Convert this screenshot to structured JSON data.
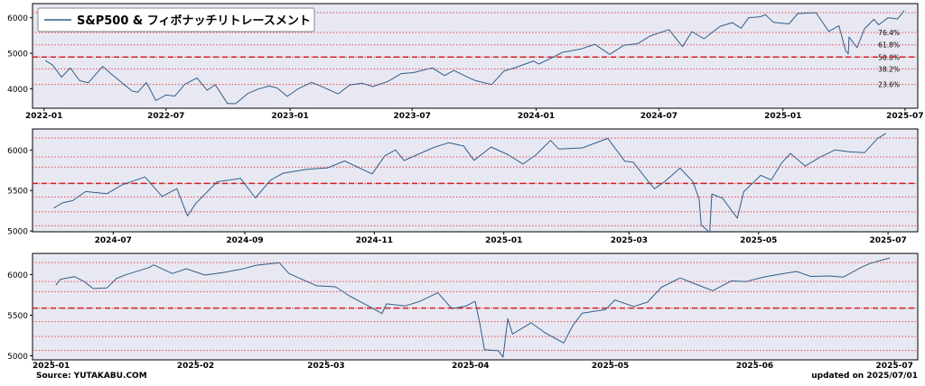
{
  "footer": {
    "source": "Source: YUTAKABU.COM",
    "updated": "updated on 2025/07/01"
  },
  "colors": {
    "line": "#2f5f8a",
    "fib_line": "#e8434f",
    "fib_mid": "#d42020",
    "panel_bg": "#e8e8f2"
  },
  "chart_data": [
    {
      "type": "line",
      "title": "",
      "legend": {
        "label": "S&P500 & フィボナッチリトレースメント",
        "position": "top-left"
      },
      "ylim": [
        3450,
        6400
      ],
      "yticks": [
        4000,
        5000,
        6000
      ],
      "xlim": [
        "2021-12-15",
        "2025-07-20"
      ],
      "xticks": [
        "2022-01",
        "2022-07",
        "2023-01",
        "2023-07",
        "2024-01",
        "2024-07",
        "2025-01",
        "2025-07"
      ],
      "grid": false,
      "fib_levels": [
        {
          "value": 6147,
          "label": ""
        },
        {
          "value": 5587,
          "label": "76.4%"
        },
        {
          "value": 5237,
          "label": "61.8%"
        },
        {
          "value": 4892,
          "label": "50.0%"
        },
        {
          "value": 4560,
          "label": "38.2%"
        },
        {
          "value": 4120,
          "label": "23.6%"
        }
      ],
      "fib_mid_value": 4892,
      "series": [
        {
          "points": [
            [
              "2022-01-03",
              4796
            ],
            [
              "2022-01-14",
              4662
            ],
            [
              "2022-01-27",
              4326
            ],
            [
              "2022-02-09",
              4587
            ],
            [
              "2022-02-23",
              4225
            ],
            [
              "2022-03-08",
              4170
            ],
            [
              "2022-03-29",
              4631
            ],
            [
              "2022-04-12",
              4397
            ],
            [
              "2022-04-29",
              4132
            ],
            [
              "2022-05-12",
              3930
            ],
            [
              "2022-05-20",
              3901
            ],
            [
              "2022-06-02",
              4176
            ],
            [
              "2022-06-16",
              3667
            ],
            [
              "2022-07-01",
              3825
            ],
            [
              "2022-07-14",
              3790
            ],
            [
              "2022-07-29",
              4130
            ],
            [
              "2022-08-16",
              4305
            ],
            [
              "2022-08-31",
              3955
            ],
            [
              "2022-09-12",
              4110
            ],
            [
              "2022-09-30",
              3585
            ],
            [
              "2022-10-12",
              3577
            ],
            [
              "2022-10-31",
              3872
            ],
            [
              "2022-11-15",
              3992
            ],
            [
              "2022-12-01",
              4076
            ],
            [
              "2022-12-13",
              4019
            ],
            [
              "2022-12-28",
              3783
            ],
            [
              "2023-01-13",
              3999
            ],
            [
              "2023-02-02",
              4179
            ],
            [
              "2023-02-23",
              4012
            ],
            [
              "2023-03-13",
              3855
            ],
            [
              "2023-03-31",
              4109
            ],
            [
              "2023-04-18",
              4154
            ],
            [
              "2023-05-04",
              4061
            ],
            [
              "2023-05-26",
              4205
            ],
            [
              "2023-06-15",
              4426
            ],
            [
              "2023-07-03",
              4455
            ],
            [
              "2023-07-31",
              4589
            ],
            [
              "2023-08-18",
              4370
            ],
            [
              "2023-09-01",
              4515
            ],
            [
              "2023-09-21",
              4330
            ],
            [
              "2023-10-03",
              4229
            ],
            [
              "2023-10-27",
              4117
            ],
            [
              "2023-11-14",
              4496
            ],
            [
              "2023-12-01",
              4594
            ],
            [
              "2023-12-28",
              4783
            ],
            [
              "2024-01-05",
              4697
            ],
            [
              "2024-01-24",
              4868
            ],
            [
              "2024-02-09",
              5026
            ],
            [
              "2024-03-08",
              5123
            ],
            [
              "2024-03-28",
              5254
            ],
            [
              "2024-04-19",
              4967
            ],
            [
              "2024-05-10",
              5222
            ],
            [
              "2024-05-31",
              5277
            ],
            [
              "2024-06-18",
              5487
            ],
            [
              "2024-07-16",
              5667
            ],
            [
              "2024-08-05",
              5186
            ],
            [
              "2024-08-19",
              5608
            ],
            [
              "2024-09-06",
              5408
            ],
            [
              "2024-09-30",
              5762
            ],
            [
              "2024-10-18",
              5864
            ],
            [
              "2024-10-31",
              5705
            ],
            [
              "2024-11-11",
              6001
            ],
            [
              "2024-11-29",
              6032
            ],
            [
              "2024-12-06",
              6090
            ],
            [
              "2024-12-18",
              5872
            ],
            [
              "2025-01-10",
              5827
            ],
            [
              "2025-01-23",
              6119
            ],
            [
              "2025-02-19",
              6144
            ],
            [
              "2025-03-10",
              5615
            ],
            [
              "2025-03-25",
              5776
            ],
            [
              "2025-04-04",
              5074
            ],
            [
              "2025-04-08",
              4982
            ],
            [
              "2025-04-09",
              5457
            ],
            [
              "2025-04-21",
              5158
            ],
            [
              "2025-05-02",
              5687
            ],
            [
              "2025-05-16",
              5958
            ],
            [
              "2025-05-23",
              5802
            ],
            [
              "2025-06-06",
              6000
            ],
            [
              "2025-06-20",
              5968
            ],
            [
              "2025-06-30",
              6205
            ]
          ]
        }
      ]
    },
    {
      "type": "line",
      "title": "",
      "ylim": [
        4990,
        6260
      ],
      "yticks": [
        5000,
        5500,
        6000
      ],
      "xlim": [
        "2024-05-24",
        "2025-07-15"
      ],
      "xticks": [
        "2024-07",
        "2024-09",
        "2024-11",
        "2025-01",
        "2025-03",
        "2025-05",
        "2025-07"
      ],
      "grid": false,
      "fib_levels": [
        {
          "value": 6147,
          "label": ""
        },
        {
          "value": 5915,
          "label": ""
        },
        {
          "value": 5790,
          "label": ""
        },
        {
          "value": 5587,
          "label": ""
        },
        {
          "value": 5420,
          "label": ""
        },
        {
          "value": 5237,
          "label": ""
        },
        {
          "value": 5065,
          "label": ""
        }
      ],
      "fib_mid_value": 5587,
      "series": [
        {
          "points": [
            [
              "2024-06-03",
              5283
            ],
            [
              "2024-06-07",
              5347
            ],
            [
              "2024-06-12",
              5375
            ],
            [
              "2024-06-18",
              5487
            ],
            [
              "2024-06-28",
              5460
            ],
            [
              "2024-07-05",
              5567
            ],
            [
              "2024-07-16",
              5667
            ],
            [
              "2024-07-24",
              5427
            ],
            [
              "2024-07-31",
              5522
            ],
            [
              "2024-08-05",
              5186
            ],
            [
              "2024-08-09",
              5344
            ],
            [
              "2024-08-19",
              5608
            ],
            [
              "2024-08-30",
              5648
            ],
            [
              "2024-09-06",
              5408
            ],
            [
              "2024-09-13",
              5626
            ],
            [
              "2024-09-19",
              5713
            ],
            [
              "2024-09-30",
              5762
            ],
            [
              "2024-10-10",
              5780
            ],
            [
              "2024-10-18",
              5864
            ],
            [
              "2024-10-31",
              5705
            ],
            [
              "2024-11-06",
              5929
            ],
            [
              "2024-11-11",
              6001
            ],
            [
              "2024-11-15",
              5870
            ],
            [
              "2024-11-29",
              6032
            ],
            [
              "2024-12-06",
              6090
            ],
            [
              "2024-12-13",
              6051
            ],
            [
              "2024-12-18",
              5872
            ],
            [
              "2024-12-26",
              6037
            ],
            [
              "2025-01-03",
              5942
            ],
            [
              "2025-01-10",
              5827
            ],
            [
              "2025-01-16",
              5937
            ],
            [
              "2025-01-23",
              6119
            ],
            [
              "2025-01-27",
              6012
            ],
            [
              "2025-02-07",
              6026
            ],
            [
              "2025-02-19",
              6144
            ],
            [
              "2025-02-27",
              5861
            ],
            [
              "2025-03-03",
              5849
            ],
            [
              "2025-03-10",
              5615
            ],
            [
              "2025-03-13",
              5521
            ],
            [
              "2025-03-18",
              5614
            ],
            [
              "2025-03-25",
              5776
            ],
            [
              "2025-03-31",
              5612
            ],
            [
              "2025-04-03",
              5397
            ],
            [
              "2025-04-04",
              5074
            ],
            [
              "2025-04-08",
              4982
            ],
            [
              "2025-04-09",
              5457
            ],
            [
              "2025-04-14",
              5406
            ],
            [
              "2025-04-21",
              5158
            ],
            [
              "2025-04-24",
              5485
            ],
            [
              "2025-05-02",
              5687
            ],
            [
              "2025-05-07",
              5631
            ],
            [
              "2025-05-12",
              5844
            ],
            [
              "2025-05-16",
              5958
            ],
            [
              "2025-05-23",
              5802
            ],
            [
              "2025-05-30",
              5912
            ],
            [
              "2025-06-06",
              6000
            ],
            [
              "2025-06-13",
              5977
            ],
            [
              "2025-06-20",
              5968
            ],
            [
              "2025-06-26",
              6141
            ],
            [
              "2025-06-30",
              6205
            ]
          ]
        }
      ]
    },
    {
      "type": "line",
      "title": "",
      "ylim": [
        4950,
        6260
      ],
      "yticks": [
        5000,
        5500,
        6000
      ],
      "xlim": [
        "2024-12-28",
        "2025-07-06"
      ],
      "xticks": [
        "2025-01",
        "2025-02",
        "2025-03",
        "2025-04",
        "2025-05",
        "2025-06",
        "2025-07"
      ],
      "grid": false,
      "fib_levels": [
        {
          "value": 6147,
          "label": ""
        },
        {
          "value": 5915,
          "label": ""
        },
        {
          "value": 5790,
          "label": ""
        },
        {
          "value": 5587,
          "label": ""
        },
        {
          "value": 5420,
          "label": ""
        },
        {
          "value": 5237,
          "label": ""
        },
        {
          "value": 5065,
          "label": ""
        }
      ],
      "fib_mid_value": 5587,
      "series": [
        {
          "points": [
            [
              "2025-01-02",
              5868
            ],
            [
              "2025-01-03",
              5942
            ],
            [
              "2025-01-06",
              5975
            ],
            [
              "2025-01-08",
              5918
            ],
            [
              "2025-01-10",
              5827
            ],
            [
              "2025-01-13",
              5836
            ],
            [
              "2025-01-15",
              5950
            ],
            [
              "2025-01-17",
              5997
            ],
            [
              "2025-01-22",
              6086
            ],
            [
              "2025-01-23",
              6119
            ],
            [
              "2025-01-27",
              6012
            ],
            [
              "2025-01-30",
              6071
            ],
            [
              "2025-02-03",
              5994
            ],
            [
              "2025-02-07",
              6026
            ],
            [
              "2025-02-11",
              6068
            ],
            [
              "2025-02-14",
              6115
            ],
            [
              "2025-02-19",
              6144
            ],
            [
              "2025-02-21",
              6013
            ],
            [
              "2025-02-27",
              5861
            ],
            [
              "2025-03-03",
              5849
            ],
            [
              "2025-03-06",
              5738
            ],
            [
              "2025-03-10",
              5615
            ],
            [
              "2025-03-13",
              5521
            ],
            [
              "2025-03-14",
              5639
            ],
            [
              "2025-03-18",
              5614
            ],
            [
              "2025-03-21",
              5667
            ],
            [
              "2025-03-25",
              5776
            ],
            [
              "2025-03-28",
              5581
            ],
            [
              "2025-03-31",
              5612
            ],
            [
              "2025-04-02",
              5671
            ],
            [
              "2025-04-03",
              5397
            ],
            [
              "2025-04-04",
              5074
            ],
            [
              "2025-04-07",
              5062
            ],
            [
              "2025-04-08",
              4982
            ],
            [
              "2025-04-09",
              5457
            ],
            [
              "2025-04-10",
              5268
            ],
            [
              "2025-04-14",
              5406
            ],
            [
              "2025-04-17",
              5283
            ],
            [
              "2025-04-21",
              5158
            ],
            [
              "2025-04-23",
              5376
            ],
            [
              "2025-04-25",
              5525
            ],
            [
              "2025-04-30",
              5569
            ],
            [
              "2025-05-02",
              5687
            ],
            [
              "2025-05-06",
              5607
            ],
            [
              "2025-05-09",
              5660
            ],
            [
              "2025-05-12",
              5844
            ],
            [
              "2025-05-16",
              5958
            ],
            [
              "2025-05-21",
              5845
            ],
            [
              "2025-05-23",
              5802
            ],
            [
              "2025-05-27",
              5922
            ],
            [
              "2025-05-30",
              5912
            ],
            [
              "2025-06-03",
              5970
            ],
            [
              "2025-06-06",
              6000
            ],
            [
              "2025-06-10",
              6038
            ],
            [
              "2025-06-13",
              5977
            ],
            [
              "2025-06-17",
              5982
            ],
            [
              "2025-06-20",
              5968
            ],
            [
              "2025-06-24",
              6092
            ],
            [
              "2025-06-26",
              6141
            ],
            [
              "2025-06-30",
              6205
            ]
          ]
        }
      ]
    }
  ]
}
